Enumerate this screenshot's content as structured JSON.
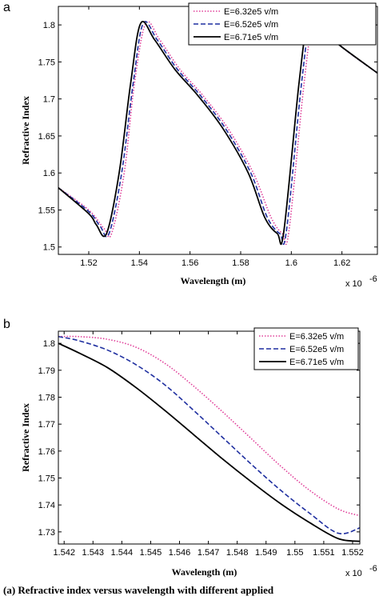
{
  "caption": "(a)  Refractive index versus wavelength with different applied",
  "chart_data": [
    {
      "type": "line",
      "panel_label": "a",
      "xlabel": "Wavelength (m)",
      "ylabel": "Refractive Index",
      "x_multiplier": "x 10",
      "x_multiplier_exp": "-6",
      "xlim": [
        1.508,
        1.634
      ],
      "ylim": [
        1.49,
        1.825
      ],
      "xticks": [
        1.52,
        1.54,
        1.56,
        1.58,
        1.6,
        1.62
      ],
      "xtick_labels": [
        "1.52",
        "1.54",
        "1.56",
        "1.58",
        "1.6",
        "1.62"
      ],
      "yticks": [
        1.5,
        1.55,
        1.6,
        1.65,
        1.7,
        1.75,
        1.8
      ],
      "ytick_labels": [
        "1.5",
        "1.55",
        "1.6",
        "1.65",
        "1.7",
        "1.75",
        "1.8"
      ],
      "grid": false,
      "legend_position": "top-right",
      "series": [
        {
          "name": "E=6.32e5 v/m",
          "color": "#e0409a",
          "style": "dotted",
          "x": [
            1.508,
            1.52,
            1.526,
            1.529,
            1.534,
            1.538,
            1.5425,
            1.548,
            1.556,
            1.565,
            1.575,
            1.585,
            1.592,
            1.5965,
            1.599,
            1.605,
            1.6085,
            1.613,
            1.62,
            1.634
          ],
          "y": [
            1.58,
            1.55,
            1.525,
            1.518,
            1.6,
            1.72,
            1.802,
            1.78,
            1.74,
            1.705,
            1.66,
            1.6,
            1.54,
            1.518,
            1.52,
            1.72,
            1.802,
            1.795,
            1.77,
            1.735
          ]
        },
        {
          "name": "E=6.52e5 v/m",
          "color": "#1f2fa0",
          "style": "dashed",
          "x": [
            1.508,
            1.52,
            1.5245,
            1.528,
            1.533,
            1.5375,
            1.5415,
            1.547,
            1.555,
            1.564,
            1.574,
            1.584,
            1.5905,
            1.5955,
            1.598,
            1.604,
            1.6075,
            1.612,
            1.62,
            1.634
          ],
          "y": [
            1.58,
            1.548,
            1.528,
            1.518,
            1.6,
            1.72,
            1.802,
            1.78,
            1.74,
            1.705,
            1.66,
            1.6,
            1.54,
            1.518,
            1.52,
            1.72,
            1.802,
            1.795,
            1.77,
            1.735
          ]
        },
        {
          "name": "E=6.71e5 v/m",
          "color": "#000000",
          "style": "solid",
          "x": [
            1.508,
            1.52,
            1.523,
            1.527,
            1.532,
            1.5365,
            1.5405,
            1.546,
            1.554,
            1.563,
            1.573,
            1.583,
            1.5895,
            1.5945,
            1.597,
            1.603,
            1.6065,
            1.611,
            1.62,
            1.634
          ],
          "y": [
            1.58,
            1.545,
            1.53,
            1.518,
            1.6,
            1.72,
            1.802,
            1.78,
            1.74,
            1.705,
            1.66,
            1.6,
            1.54,
            1.518,
            1.52,
            1.72,
            1.802,
            1.795,
            1.77,
            1.735
          ]
        }
      ]
    },
    {
      "type": "line",
      "panel_label": "b",
      "xlabel": "Wavelength (m)",
      "ylabel": "Refractive Index",
      "x_multiplier": "x 10",
      "x_multiplier_exp": "-6",
      "xlim": [
        1.5418,
        1.55225
      ],
      "ylim": [
        1.7255,
        1.8045
      ],
      "xticks": [
        1.542,
        1.543,
        1.544,
        1.545,
        1.546,
        1.547,
        1.548,
        1.549,
        1.55,
        1.551,
        1.552
      ],
      "xtick_labels": [
        "1.542",
        "1.543",
        "1.544",
        "1.545",
        "1.546",
        "1.547",
        "1.548",
        "1.549",
        "1.55",
        "1.551",
        "1.552"
      ],
      "yticks": [
        1.73,
        1.74,
        1.75,
        1.76,
        1.77,
        1.78,
        1.79,
        1.8
      ],
      "ytick_labels": [
        "1.73",
        "1.74",
        "1.75",
        "1.76",
        "1.77",
        "1.78",
        "1.79",
        "1.8"
      ],
      "grid": false,
      "legend_position": "top-right",
      "series": [
        {
          "name": "E=6.32e5 v/m",
          "color": "#e0409a",
          "style": "dotted",
          "x": [
            1.5418,
            1.5425,
            1.5435,
            1.5445,
            1.5455,
            1.5465,
            1.5475,
            1.5485,
            1.5495,
            1.5505,
            1.5515,
            1.55225
          ],
          "y": [
            1.8025,
            1.8025,
            1.8015,
            1.7985,
            1.7925,
            1.784,
            1.7745,
            1.7645,
            1.7545,
            1.7455,
            1.7385,
            1.736
          ]
        },
        {
          "name": "E=6.52e5 v/m",
          "color": "#1f2fa0",
          "style": "dashed",
          "x": [
            1.5418,
            1.5425,
            1.5435,
            1.5445,
            1.5455,
            1.5465,
            1.5475,
            1.5485,
            1.5495,
            1.5505,
            1.5515,
            1.55225
          ],
          "y": [
            1.8025,
            1.801,
            1.7975,
            1.792,
            1.7845,
            1.775,
            1.765,
            1.755,
            1.7455,
            1.737,
            1.7295,
            1.7315
          ]
        },
        {
          "name": "E=6.71e5 v/m",
          "color": "#000000",
          "style": "solid",
          "x": [
            1.5418,
            1.5425,
            1.5435,
            1.5445,
            1.5455,
            1.5465,
            1.5475,
            1.5485,
            1.5495,
            1.5505,
            1.5515,
            1.55225
          ],
          "y": [
            1.8,
            1.7965,
            1.791,
            1.7835,
            1.775,
            1.766,
            1.757,
            1.7485,
            1.7405,
            1.7335,
            1.7275,
            1.7265
          ]
        }
      ]
    }
  ]
}
